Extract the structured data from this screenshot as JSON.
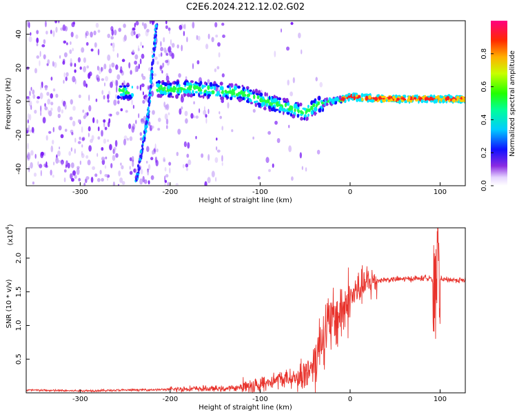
{
  "title": "C2E6.2024.212.12.02.G02",
  "colors": {
    "line": "#e8322b",
    "axis": "#000000",
    "spectrum_low": "#7a1cf5",
    "spectrum_mid": "#00e5ff",
    "spectrum_hi": "#ff2020"
  },
  "chart_data": [
    {
      "type": "heatmap",
      "title": "C2E6.2024.212.12.02.G02",
      "xlabel": "Height of straight line (km)",
      "ylabel": "Frequency (Hz)",
      "xlim": [
        -360,
        128
      ],
      "ylim": [
        -50,
        48
      ],
      "xticks": [
        -300,
        -200,
        -100,
        0,
        100
      ],
      "yticks": [
        -40,
        -20,
        0,
        20,
        40
      ],
      "colorbar": {
        "label": "Normalized spectral amplitude",
        "range": [
          0,
          1
        ],
        "ticks": [
          "0.0",
          "0.2",
          "0.4",
          "0.6",
          "0.8"
        ],
        "tick_values": [
          0,
          0.2,
          0.4,
          0.6,
          0.8
        ]
      },
      "ridge": {
        "x": [
          -255,
          -245,
          -215,
          -200,
          -180,
          -160,
          -140,
          -120,
          -100,
          -80,
          -60,
          -50,
          -40,
          -25,
          -10,
          0,
          20,
          60,
          100,
          128
        ],
        "y": [
          6,
          6,
          8,
          7,
          8,
          7,
          6,
          5,
          1,
          -2,
          -5,
          -7,
          -3,
          0,
          1,
          3,
          2,
          1.5,
          1.5,
          1.5
        ]
      },
      "streak": {
        "x": [
          -238,
          -225,
          -215
        ],
        "y": [
          -48,
          -10,
          47
        ]
      }
    },
    {
      "type": "line",
      "xlabel": "Height of straight line (km)",
      "ylabel": "SNR (10 * v/v)",
      "yscale_label": "(x10",
      "yscale_exp": "4",
      "xlim": [
        -360,
        128
      ],
      "ylim": [
        0,
        2.45
      ],
      "xticks": [
        -300,
        -200,
        -100,
        0,
        100
      ],
      "yticks": [
        0.5,
        1.0,
        1.5,
        2.0
      ],
      "yticklabels": [
        "0.5",
        "1.0",
        "1.5",
        "2.0"
      ],
      "series": [
        {
          "name": "SNR",
          "x": [
            -360,
            -300,
            -250,
            -200,
            -180,
            -160,
            -140,
            -120,
            -100,
            -80,
            -60,
            -50,
            -40,
            -30,
            -20,
            -10,
            0,
            10,
            20,
            30,
            40,
            60,
            80,
            90,
            95,
            97,
            100,
            110,
            128
          ],
          "y": [
            0.04,
            0.03,
            0.04,
            0.05,
            0.06,
            0.06,
            0.06,
            0.08,
            0.12,
            0.2,
            0.22,
            0.28,
            0.45,
            0.9,
            1.05,
            1.2,
            1.4,
            1.55,
            1.63,
            1.67,
            1.68,
            1.69,
            1.7,
            1.72,
            1.4,
            2.2,
            1.68,
            1.68,
            1.67
          ]
        }
      ]
    }
  ]
}
